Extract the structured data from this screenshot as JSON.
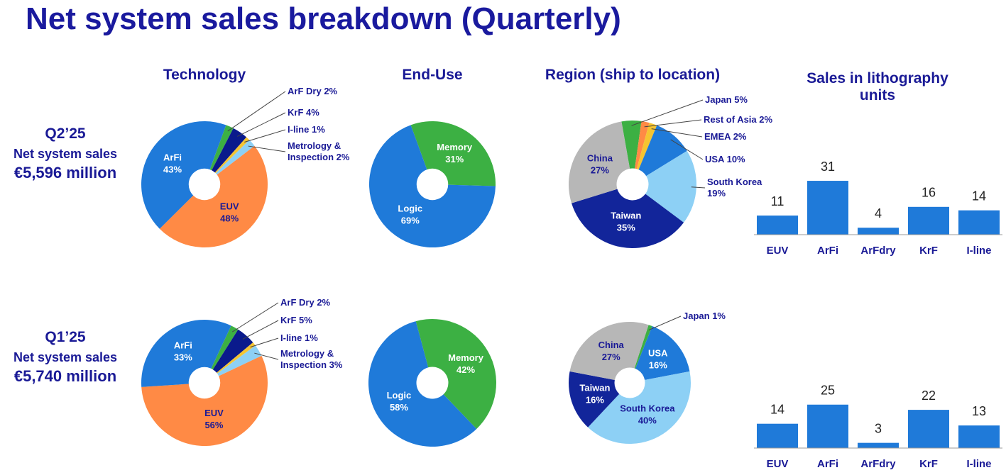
{
  "title": "Net system sales breakdown (Quarterly)",
  "rows": [
    {
      "period": "Q2’25",
      "label": "Net system sales",
      "amount": "€5,596 million"
    },
    {
      "period": "Q1’25",
      "label": "Net system sales",
      "amount": "€5,740 million"
    }
  ],
  "chart_data": [
    {
      "type": "pie",
      "title": "Technology",
      "categories": [
        "ArF Dry",
        "KrF",
        "I-line",
        "Metrology & Inspection",
        "EUV",
        "ArFi"
      ],
      "values": [
        2,
        4,
        1,
        2,
        48,
        43
      ],
      "value_labels": [
        "2%",
        "4%",
        "1%",
        "2%",
        "48%",
        "43%"
      ],
      "colors": [
        "#3cb043",
        "#0a1a8c",
        "#f5c431",
        "#8dd0f5",
        "#ff8a45",
        "#1f7ad9"
      ]
    },
    {
      "type": "pie",
      "title": "End-Use",
      "categories": [
        "Memory",
        "Logic"
      ],
      "values": [
        31,
        69
      ],
      "value_labels": [
        "31%",
        "69%"
      ],
      "colors": [
        "#3cb043",
        "#1f7ad9"
      ]
    },
    {
      "type": "pie",
      "title": "Region (ship to location)",
      "categories": [
        "Japan",
        "Rest of Asia",
        "EMEA",
        "USA",
        "South Korea",
        "Taiwan",
        "China"
      ],
      "values": [
        5,
        2,
        2,
        10,
        19,
        35,
        27
      ],
      "value_labels": [
        "5%",
        "2%",
        "2%",
        "10%",
        "19%",
        "35%",
        "27%"
      ],
      "colors": [
        "#3cb043",
        "#ff8a45",
        "#f5c431",
        "#1f7ad9",
        "#8dd0f5",
        "#12259a",
        "#b7b7b7"
      ]
    },
    {
      "type": "bar",
      "title": "Sales in lithography units",
      "categories": [
        "EUV",
        "ArFi",
        "ArFdry",
        "KrF",
        "I-line"
      ],
      "values": [
        11,
        31,
        4,
        16,
        14
      ],
      "color": "#1f7ad9"
    },
    {
      "type": "pie",
      "categories": [
        "ArF Dry",
        "KrF",
        "I-line",
        "Metrology & Inspection",
        "EUV",
        "ArFi"
      ],
      "values": [
        2,
        5,
        1,
        3,
        56,
        33
      ],
      "value_labels": [
        "2%",
        "5%",
        "1%",
        "3%",
        "56%",
        "33%"
      ],
      "colors": [
        "#3cb043",
        "#0a1a8c",
        "#f5c431",
        "#8dd0f5",
        "#ff8a45",
        "#1f7ad9"
      ]
    },
    {
      "type": "pie",
      "categories": [
        "Memory",
        "Logic"
      ],
      "values": [
        42,
        58
      ],
      "value_labels": [
        "42%",
        "58%"
      ],
      "colors": [
        "#3cb043",
        "#1f7ad9"
      ]
    },
    {
      "type": "pie",
      "categories": [
        "Japan",
        "USA",
        "South Korea",
        "Taiwan",
        "China"
      ],
      "values": [
        1,
        16,
        40,
        16,
        27
      ],
      "value_labels": [
        "1%",
        "16%",
        "40%",
        "16%",
        "27%"
      ],
      "colors": [
        "#3cb043",
        "#1f7ad9",
        "#8dd0f5",
        "#12259a",
        "#b7b7b7"
      ]
    },
    {
      "type": "bar",
      "categories": [
        "EUV",
        "ArFi",
        "ArFdry",
        "KrF",
        "I-line"
      ],
      "values": [
        14,
        25,
        3,
        22,
        13
      ],
      "color": "#1f7ad9"
    }
  ]
}
